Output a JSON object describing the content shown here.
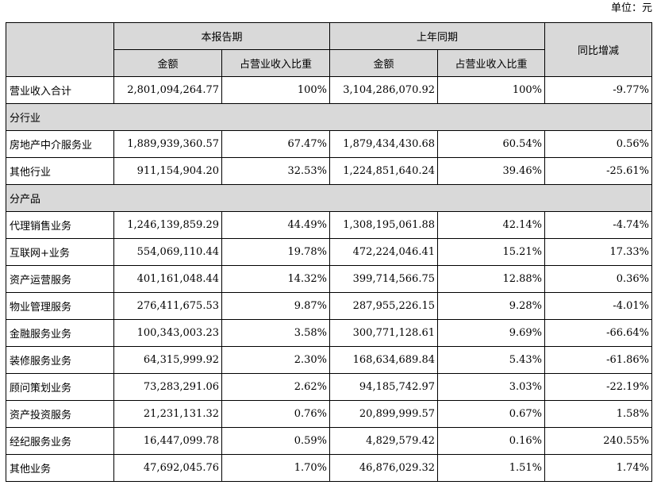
{
  "unit_label": "单位：元",
  "header": {
    "period_current": "本报告期",
    "period_prior": "上年同期",
    "yoy": "同比增减",
    "amount": "金额",
    "ratio": "占营业收入比重"
  },
  "total": {
    "label": "营业收入合计",
    "cur_amount": "2,801,094,264.77",
    "cur_ratio": "100%",
    "prior_amount": "3,104,286,070.92",
    "prior_ratio": "100%",
    "yoy": "-9.77%"
  },
  "sections": [
    {
      "title": "分行业",
      "rows": [
        {
          "label": "房地产中介服务业",
          "cur_amount": "1,889,939,360.57",
          "cur_ratio": "67.47%",
          "prior_amount": "1,879,434,430.68",
          "prior_ratio": "60.54%",
          "yoy": "0.56%"
        },
        {
          "label": "其他行业",
          "cur_amount": "911,154,904.20",
          "cur_ratio": "32.53%",
          "prior_amount": "1,224,851,640.24",
          "prior_ratio": "39.46%",
          "yoy": "-25.61%"
        }
      ]
    },
    {
      "title": "分产品",
      "rows": [
        {
          "label": "代理销售业务",
          "cur_amount": "1,246,139,859.29",
          "cur_ratio": "44.49%",
          "prior_amount": "1,308,195,061.88",
          "prior_ratio": "42.14%",
          "yoy": "-4.74%"
        },
        {
          "label": "互联网+业务",
          "cur_amount": "554,069,110.44",
          "cur_ratio": "19.78%",
          "prior_amount": "472,224,046.41",
          "prior_ratio": "15.21%",
          "yoy": "17.33%"
        },
        {
          "label": "资产运营服务",
          "cur_amount": "401,161,048.44",
          "cur_ratio": "14.32%",
          "prior_amount": "399,714,566.75",
          "prior_ratio": "12.88%",
          "yoy": "0.36%"
        },
        {
          "label": "物业管理服务",
          "cur_amount": "276,411,675.53",
          "cur_ratio": "9.87%",
          "prior_amount": "287,955,226.15",
          "prior_ratio": "9.28%",
          "yoy": "-4.01%"
        },
        {
          "label": "金融服务业务",
          "cur_amount": "100,343,003.23",
          "cur_ratio": "3.58%",
          "prior_amount": "300,771,128.61",
          "prior_ratio": "9.69%",
          "yoy": "-66.64%"
        },
        {
          "label": "装修服务业务",
          "cur_amount": "64,315,999.92",
          "cur_ratio": "2.30%",
          "prior_amount": "168,634,689.84",
          "prior_ratio": "5.43%",
          "yoy": "-61.86%"
        },
        {
          "label": "顾问策划业务",
          "cur_amount": "73,283,291.06",
          "cur_ratio": "2.62%",
          "prior_amount": "94,185,742.97",
          "prior_ratio": "3.03%",
          "yoy": "-22.19%"
        },
        {
          "label": "资产投资服务",
          "cur_amount": "21,231,131.32",
          "cur_ratio": "0.76%",
          "prior_amount": "20,899,999.57",
          "prior_ratio": "0.67%",
          "yoy": "1.58%"
        },
        {
          "label": "经纪服务业务",
          "cur_amount": "16,447,099.78",
          "cur_ratio": "0.59%",
          "prior_amount": "4,829,579.42",
          "prior_ratio": "0.16%",
          "yoy": "240.55%"
        },
        {
          "label": "其他业务",
          "cur_amount": "47,692,045.76",
          "cur_ratio": "1.70%",
          "prior_amount": "46,876,029.32",
          "prior_ratio": "1.51%",
          "yoy": "1.74%"
        }
      ]
    }
  ]
}
